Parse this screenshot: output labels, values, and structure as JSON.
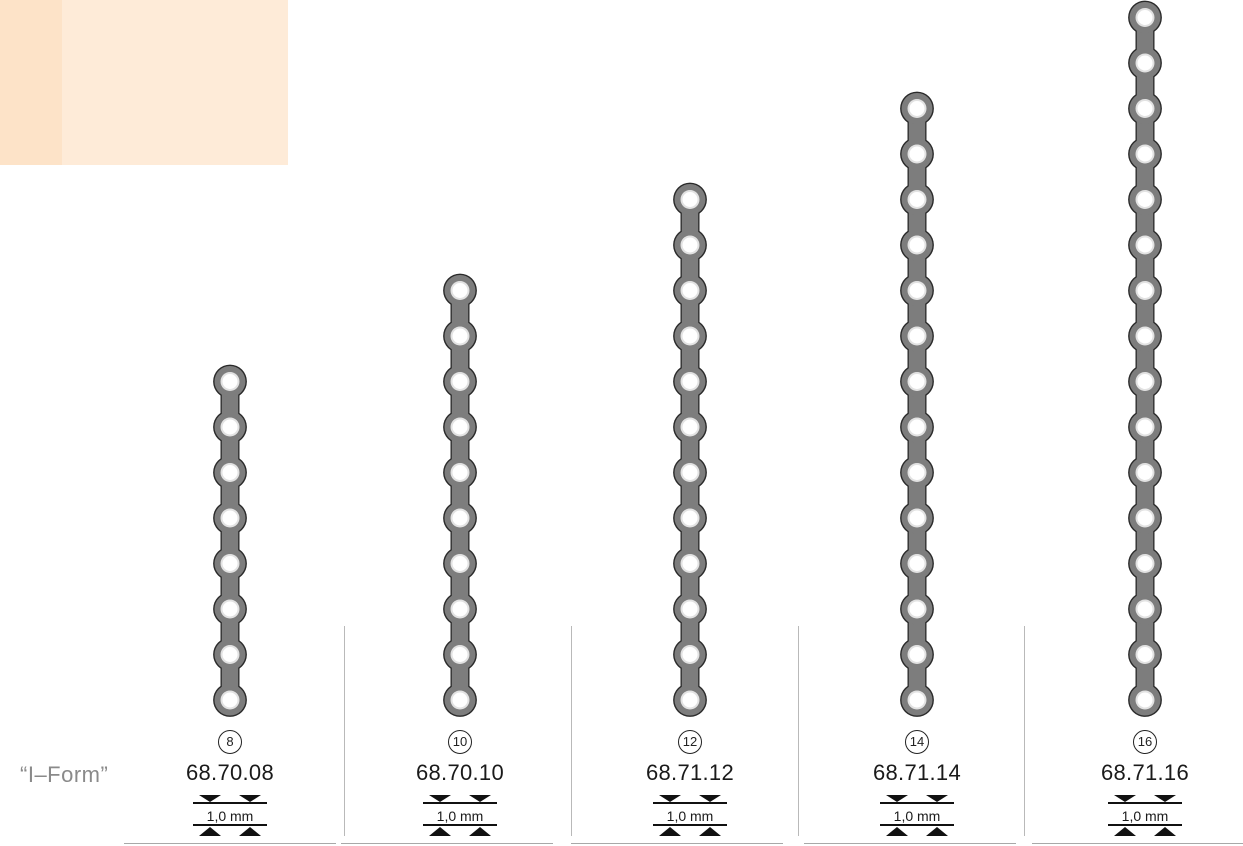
{
  "form_label": "“I–Form”",
  "thickness_label": "1,0 mm",
  "plates": [
    {
      "holes": "8",
      "article": "68.70.08"
    },
    {
      "holes": "10",
      "article": "68.70.10"
    },
    {
      "holes": "12",
      "article": "68.71.12"
    },
    {
      "holes": "14",
      "article": "68.71.14"
    },
    {
      "holes": "16",
      "article": "68.71.16"
    }
  ],
  "colors": {
    "plate_fill": "#7d7d7d",
    "plate_outline": "#2a2a2a",
    "accent": "#feebd8",
    "accent_strip": "#fde3c8"
  },
  "icons": [
    "plate-illustration",
    "thickness-arrows-icon"
  ]
}
